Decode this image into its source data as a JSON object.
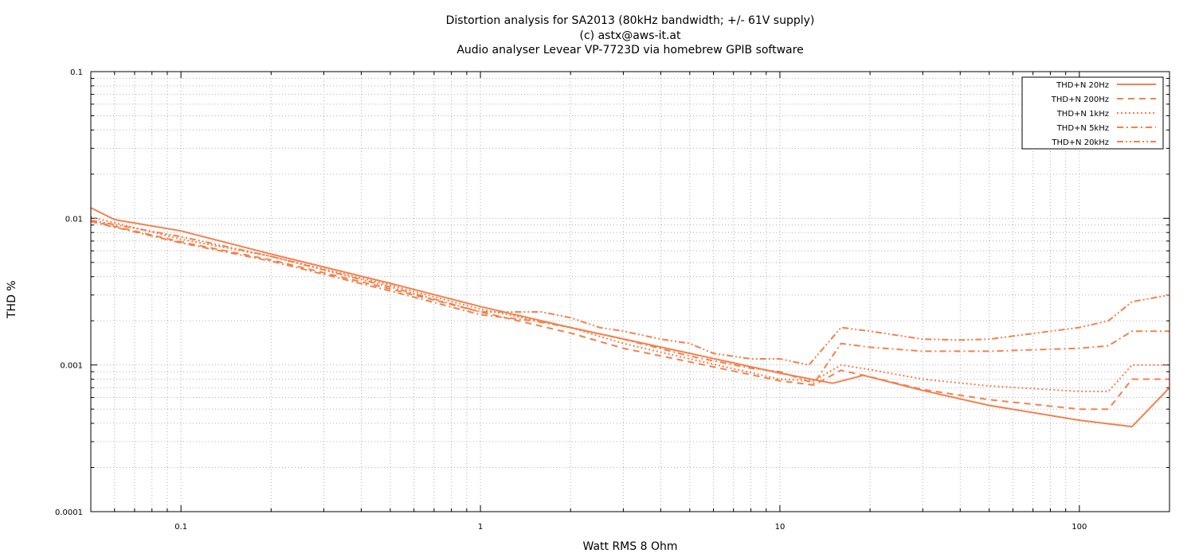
{
  "chart_data": {
    "type": "line",
    "title": [
      "Distortion analysis for SA2013 (80kHz bandwidth; +/- 61V supply)",
      "(c) astx@aws-it.at",
      "Audio analyser Levear VP-7723D via homebrew GPIB software"
    ],
    "xlabel": "Watt RMS 8 Ohm",
    "ylabel": "THD %",
    "x_scale": "log",
    "y_scale": "log",
    "xlim": [
      0.05,
      200
    ],
    "ylim": [
      0.0001,
      0.1
    ],
    "grid": true,
    "legend_position": "top-right",
    "x_ticks": [
      0.1,
      1,
      10,
      100
    ],
    "x_tick_labels": [
      "0.1",
      "1",
      "10",
      "100"
    ],
    "y_ticks": [
      0.0001,
      0.001,
      0.01,
      0.1
    ],
    "y_tick_labels": [
      "0.0001",
      "0.001",
      "0.01",
      "0.1"
    ],
    "color": "#f4804c",
    "series": [
      {
        "name": "THD+N 20Hz",
        "dash": "solid",
        "x": [
          0.05,
          0.06,
          0.1,
          0.2,
          0.5,
          1,
          2,
          5,
          10,
          15,
          19,
          30,
          50,
          100,
          150,
          200
        ],
        "y": [
          0.0118,
          0.0098,
          0.0082,
          0.0057,
          0.0036,
          0.0025,
          0.0018,
          0.0012,
          0.00088,
          0.00075,
          0.00085,
          0.00067,
          0.00053,
          0.00042,
          0.00038,
          0.0007
        ]
      },
      {
        "name": "THD+N 200Hz",
        "dash": "dashed",
        "x": [
          0.05,
          0.1,
          0.2,
          0.5,
          1,
          2,
          3,
          5,
          10,
          13,
          16,
          20,
          30,
          50,
          100,
          125,
          150,
          200
        ],
        "y": [
          0.0096,
          0.0069,
          0.0052,
          0.0033,
          0.0023,
          0.00165,
          0.0013,
          0.00105,
          0.00078,
          0.00073,
          0.00092,
          0.00083,
          0.00068,
          0.00058,
          0.0005,
          0.0005,
          0.0008,
          0.0008
        ]
      },
      {
        "name": "THD+N 1kHz",
        "dash": "dotted",
        "x": [
          0.05,
          0.1,
          0.2,
          0.5,
          1,
          2,
          3,
          5,
          10,
          13,
          16,
          20,
          30,
          50,
          100,
          125,
          150,
          200
        ],
        "y": [
          0.0102,
          0.0072,
          0.0055,
          0.0035,
          0.0024,
          0.0018,
          0.0014,
          0.0011,
          0.0008,
          0.00078,
          0.001,
          0.00093,
          0.0008,
          0.00072,
          0.00066,
          0.00066,
          0.001,
          0.001
        ]
      },
      {
        "name": "THD+N 5kHz",
        "dash": "dash-dot",
        "x": [
          0.05,
          0.1,
          0.2,
          0.5,
          1,
          1.5,
          2,
          3,
          5,
          8,
          10,
          13,
          16,
          20,
          30,
          50,
          100,
          125,
          150,
          200
        ],
        "y": [
          0.0095,
          0.0068,
          0.0051,
          0.0032,
          0.0022,
          0.002,
          0.0018,
          0.0015,
          0.00115,
          0.00095,
          0.0009,
          0.00075,
          0.0014,
          0.00132,
          0.00124,
          0.00124,
          0.0013,
          0.00135,
          0.0017,
          0.0017
        ]
      },
      {
        "name": "THD+N 20kHz",
        "dash": "dash-dot-dot",
        "x": [
          0.05,
          0.1,
          0.2,
          0.5,
          1,
          1.6,
          2,
          2.5,
          3,
          4,
          5,
          6,
          8,
          10,
          12.5,
          16,
          20,
          30,
          40,
          50,
          100,
          125,
          150,
          200
        ],
        "y": [
          0.0097,
          0.0075,
          0.0055,
          0.0034,
          0.0023,
          0.0023,
          0.0021,
          0.0018,
          0.0017,
          0.0015,
          0.0014,
          0.0012,
          0.0011,
          0.0011,
          0.001,
          0.0018,
          0.0017,
          0.0015,
          0.00148,
          0.0015,
          0.0018,
          0.002,
          0.0027,
          0.003
        ]
      }
    ]
  }
}
